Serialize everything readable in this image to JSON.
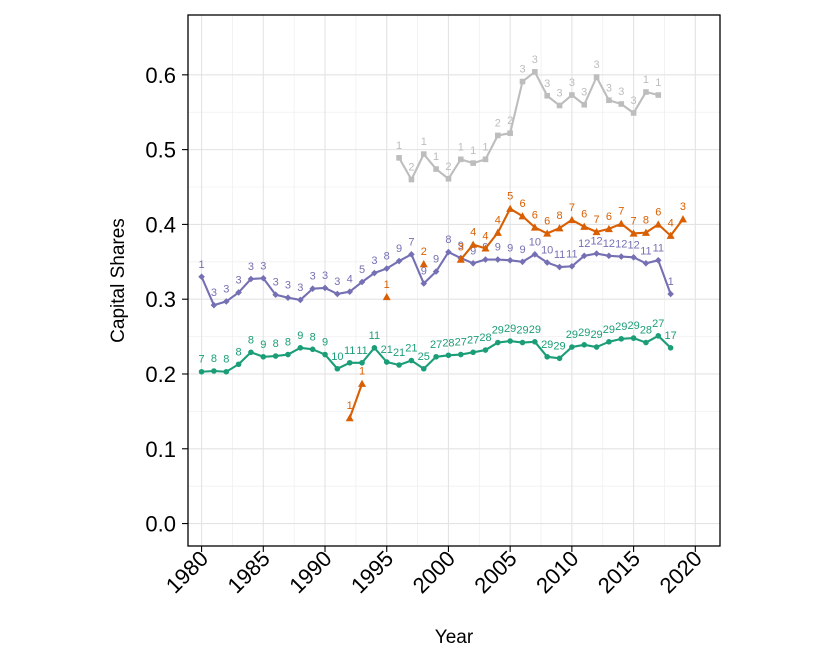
{
  "chart_data": {
    "type": "line",
    "title": "",
    "xlabel": "Year",
    "ylabel": "Capital Shares",
    "xlim": [
      1978.9,
      2022.0
    ],
    "ylim": [
      -0.03,
      0.68
    ],
    "x_ticks": [
      1980,
      1985,
      1990,
      1995,
      2000,
      2005,
      2010,
      2015,
      2020
    ],
    "y_ticks": [
      0.0,
      0.1,
      0.2,
      0.3,
      0.4,
      0.5,
      0.6
    ],
    "y_tick_labels": [
      "0.0",
      "0.1",
      "0.2",
      "0.3",
      "0.4",
      "0.5",
      "0.6"
    ],
    "grid": true,
    "legend": "none",
    "series": [
      {
        "color": "#1b9e77",
        "marker": "circle",
        "points": [
          {
            "x": 1980,
            "y": 0.203,
            "label": "7"
          },
          {
            "x": 1981,
            "y": 0.204,
            "label": "8"
          },
          {
            "x": 1982,
            "y": 0.203,
            "label": "8"
          },
          {
            "x": 1983,
            "y": 0.213,
            "label": "8"
          },
          {
            "x": 1984,
            "y": 0.229,
            "label": "8"
          },
          {
            "x": 1985,
            "y": 0.223,
            "label": "9"
          },
          {
            "x": 1986,
            "y": 0.224,
            "label": "8"
          },
          {
            "x": 1987,
            "y": 0.226,
            "label": "8"
          },
          {
            "x": 1988,
            "y": 0.235,
            "label": "9"
          },
          {
            "x": 1989,
            "y": 0.233,
            "label": "8"
          },
          {
            "x": 1990,
            "y": 0.226,
            "label": "9"
          },
          {
            "x": 1991,
            "y": 0.207,
            "label": "10"
          },
          {
            "x": 1992,
            "y": 0.215,
            "label": "11"
          },
          {
            "x": 1993,
            "y": 0.215,
            "label": "11"
          },
          {
            "x": 1994,
            "y": 0.235,
            "label": "11"
          },
          {
            "x": 1995,
            "y": 0.216,
            "label": "21"
          },
          {
            "x": 1996,
            "y": 0.212,
            "label": "21"
          },
          {
            "x": 1997,
            "y": 0.218,
            "label": "21"
          },
          {
            "x": 1998,
            "y": 0.207,
            "label": "25"
          },
          {
            "x": 1999,
            "y": 0.223,
            "label": "27"
          },
          {
            "x": 2000,
            "y": 0.225,
            "label": "28"
          },
          {
            "x": 2001,
            "y": 0.226,
            "label": "27"
          },
          {
            "x": 2002,
            "y": 0.229,
            "label": "27"
          },
          {
            "x": 2003,
            "y": 0.232,
            "label": "28"
          },
          {
            "x": 2004,
            "y": 0.242,
            "label": "29"
          },
          {
            "x": 2005,
            "y": 0.244,
            "label": "29"
          },
          {
            "x": 2006,
            "y": 0.242,
            "label": "29"
          },
          {
            "x": 2007,
            "y": 0.243,
            "label": "29"
          },
          {
            "x": 2008,
            "y": 0.223,
            "label": "29"
          },
          {
            "x": 2009,
            "y": 0.221,
            "label": "29"
          },
          {
            "x": 2010,
            "y": 0.236,
            "label": "29"
          },
          {
            "x": 2011,
            "y": 0.239,
            "label": "29"
          },
          {
            "x": 2012,
            "y": 0.236,
            "label": "29"
          },
          {
            "x": 2013,
            "y": 0.243,
            "label": "29"
          },
          {
            "x": 2014,
            "y": 0.247,
            "label": "29"
          },
          {
            "x": 2015,
            "y": 0.248,
            "label": "29"
          },
          {
            "x": 2016,
            "y": 0.242,
            "label": "28"
          },
          {
            "x": 2017,
            "y": 0.251,
            "label": "27"
          },
          {
            "x": 2018,
            "y": 0.235,
            "label": "17"
          }
        ]
      },
      {
        "color": "#7570b3",
        "marker": "diamond",
        "points": [
          {
            "x": 1980,
            "y": 0.33,
            "label": "1"
          },
          {
            "x": 1981,
            "y": 0.292,
            "label": "3"
          },
          {
            "x": 1982,
            "y": 0.297,
            "label": "3"
          },
          {
            "x": 1983,
            "y": 0.309,
            "label": "3"
          },
          {
            "x": 1984,
            "y": 0.327,
            "label": "3"
          },
          {
            "x": 1985,
            "y": 0.328,
            "label": "3"
          },
          {
            "x": 1986,
            "y": 0.306,
            "label": "3"
          },
          {
            "x": 1987,
            "y": 0.302,
            "label": "3"
          },
          {
            "x": 1988,
            "y": 0.299,
            "label": "3"
          },
          {
            "x": 1989,
            "y": 0.314,
            "label": "3"
          },
          {
            "x": 1990,
            "y": 0.315,
            "label": "3"
          },
          {
            "x": 1991,
            "y": 0.307,
            "label": "3"
          },
          {
            "x": 1992,
            "y": 0.31,
            "label": "4"
          },
          {
            "x": 1993,
            "y": 0.323,
            "label": "5"
          },
          {
            "x": 1994,
            "y": 0.335,
            "label": "3"
          },
          {
            "x": 1995,
            "y": 0.341,
            "label": "8"
          },
          {
            "x": 1996,
            "y": 0.351,
            "label": "9"
          },
          {
            "x": 1997,
            "y": 0.36,
            "label": "7"
          },
          {
            "x": 1998,
            "y": 0.321,
            "label": "9"
          },
          {
            "x": 1999,
            "y": 0.337,
            "label": "9"
          },
          {
            "x": 2000,
            "y": 0.363,
            "label": "8"
          },
          {
            "x": 2001,
            "y": 0.355,
            "label": "9"
          },
          {
            "x": 2002,
            "y": 0.348,
            "label": "9"
          },
          {
            "x": 2003,
            "y": 0.353,
            "label": "9"
          },
          {
            "x": 2004,
            "y": 0.353,
            "label": "9"
          },
          {
            "x": 2005,
            "y": 0.352,
            "label": "9"
          },
          {
            "x": 2006,
            "y": 0.35,
            "label": "9"
          },
          {
            "x": 2007,
            "y": 0.36,
            "label": "10"
          },
          {
            "x": 2008,
            "y": 0.349,
            "label": "10"
          },
          {
            "x": 2009,
            "y": 0.343,
            "label": "11"
          },
          {
            "x": 2010,
            "y": 0.344,
            "label": "11"
          },
          {
            "x": 2011,
            "y": 0.358,
            "label": "12"
          },
          {
            "x": 2012,
            "y": 0.361,
            "label": "12"
          },
          {
            "x": 2013,
            "y": 0.358,
            "label": "12"
          },
          {
            "x": 2014,
            "y": 0.357,
            "label": "12"
          },
          {
            "x": 2015,
            "y": 0.356,
            "label": "12"
          },
          {
            "x": 2016,
            "y": 0.348,
            "label": "11"
          },
          {
            "x": 2017,
            "y": 0.352,
            "label": "11"
          },
          {
            "x": 2018,
            "y": 0.307,
            "label": "1"
          }
        ]
      },
      {
        "color": "#d95f02",
        "marker": "triangle",
        "points": [
          {
            "x": 1992,
            "y": 0.141,
            "label": "1"
          },
          {
            "x": 1993,
            "y": 0.187,
            "label": "1"
          },
          {
            "x": 1995,
            "y": 0.303,
            "label": "1",
            "break_before": true
          },
          {
            "x": 1998,
            "y": 0.347,
            "label": "2",
            "break_before": true
          },
          {
            "x": 2001,
            "y": 0.353,
            "label": "3",
            "break_before": true
          },
          {
            "x": 2002,
            "y": 0.373,
            "label": "4"
          },
          {
            "x": 2003,
            "y": 0.368,
            "label": "4"
          },
          {
            "x": 2004,
            "y": 0.389,
            "label": "4"
          },
          {
            "x": 2005,
            "y": 0.421,
            "label": "5"
          },
          {
            "x": 2006,
            "y": 0.411,
            "label": "6"
          },
          {
            "x": 2007,
            "y": 0.396,
            "label": "6"
          },
          {
            "x": 2008,
            "y": 0.388,
            "label": "6"
          },
          {
            "x": 2009,
            "y": 0.395,
            "label": "8"
          },
          {
            "x": 2010,
            "y": 0.406,
            "label": "7"
          },
          {
            "x": 2011,
            "y": 0.397,
            "label": "6"
          },
          {
            "x": 2012,
            "y": 0.39,
            "label": "7"
          },
          {
            "x": 2013,
            "y": 0.394,
            "label": "6"
          },
          {
            "x": 2014,
            "y": 0.401,
            "label": "7"
          },
          {
            "x": 2015,
            "y": 0.388,
            "label": "7"
          },
          {
            "x": 2016,
            "y": 0.389,
            "label": "8"
          },
          {
            "x": 2017,
            "y": 0.4,
            "label": "6"
          },
          {
            "x": 2018,
            "y": 0.385,
            "label": "4"
          },
          {
            "x": 2019,
            "y": 0.407,
            "label": "3"
          }
        ]
      },
      {
        "color": "#bdbdbd",
        "marker": "square",
        "points": [
          {
            "x": 1996,
            "y": 0.489,
            "label": "1"
          },
          {
            "x": 1997,
            "y": 0.46,
            "label": "2"
          },
          {
            "x": 1998,
            "y": 0.494,
            "label": "1"
          },
          {
            "x": 1999,
            "y": 0.474,
            "label": "1"
          },
          {
            "x": 2000,
            "y": 0.461,
            "label": "2"
          },
          {
            "x": 2001,
            "y": 0.487,
            "label": "1"
          },
          {
            "x": 2002,
            "y": 0.482,
            "label": "1"
          },
          {
            "x": 2003,
            "y": 0.487,
            "label": "1"
          },
          {
            "x": 2004,
            "y": 0.519,
            "label": "2"
          },
          {
            "x": 2005,
            "y": 0.522,
            "label": "2"
          },
          {
            "x": 2006,
            "y": 0.591,
            "label": "3"
          },
          {
            "x": 2007,
            "y": 0.604,
            "label": "3"
          },
          {
            "x": 2008,
            "y": 0.572,
            "label": "3"
          },
          {
            "x": 2009,
            "y": 0.559,
            "label": "3"
          },
          {
            "x": 2010,
            "y": 0.573,
            "label": "3"
          },
          {
            "x": 2011,
            "y": 0.56,
            "label": "3"
          },
          {
            "x": 2012,
            "y": 0.597,
            "label": "3"
          },
          {
            "x": 2013,
            "y": 0.566,
            "label": "3"
          },
          {
            "x": 2014,
            "y": 0.561,
            "label": "3"
          },
          {
            "x": 2015,
            "y": 0.549,
            "label": "3"
          },
          {
            "x": 2016,
            "y": 0.577,
            "label": "1"
          },
          {
            "x": 2017,
            "y": 0.573,
            "label": "1"
          }
        ]
      }
    ]
  }
}
